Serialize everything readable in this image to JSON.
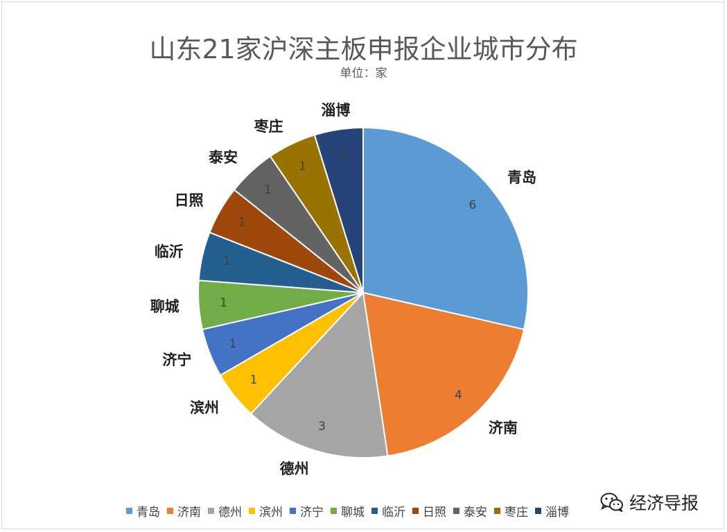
{
  "chart_data": {
    "type": "pie",
    "title": "山东21家沪深主板申报企业城市分布",
    "subtitle": "单位：家",
    "categories": [
      "青岛",
      "济南",
      "德州",
      "滨州",
      "济宁",
      "聊城",
      "临沂",
      "日照",
      "泰安",
      "枣庄",
      "淄博"
    ],
    "values": [
      6,
      4,
      3,
      1,
      1,
      1,
      1,
      1,
      1,
      1,
      1
    ],
    "colors": [
      "#5b9bd5",
      "#ed7d31",
      "#a5a5a5",
      "#ffc000",
      "#4472c4",
      "#70ad47",
      "#255e91",
      "#9e480e",
      "#636363",
      "#997300",
      "#264478"
    ],
    "legend_position": "bottom",
    "data_labels": true
  },
  "watermark": {
    "icon": "wechat-icon",
    "text": "经济导报"
  }
}
